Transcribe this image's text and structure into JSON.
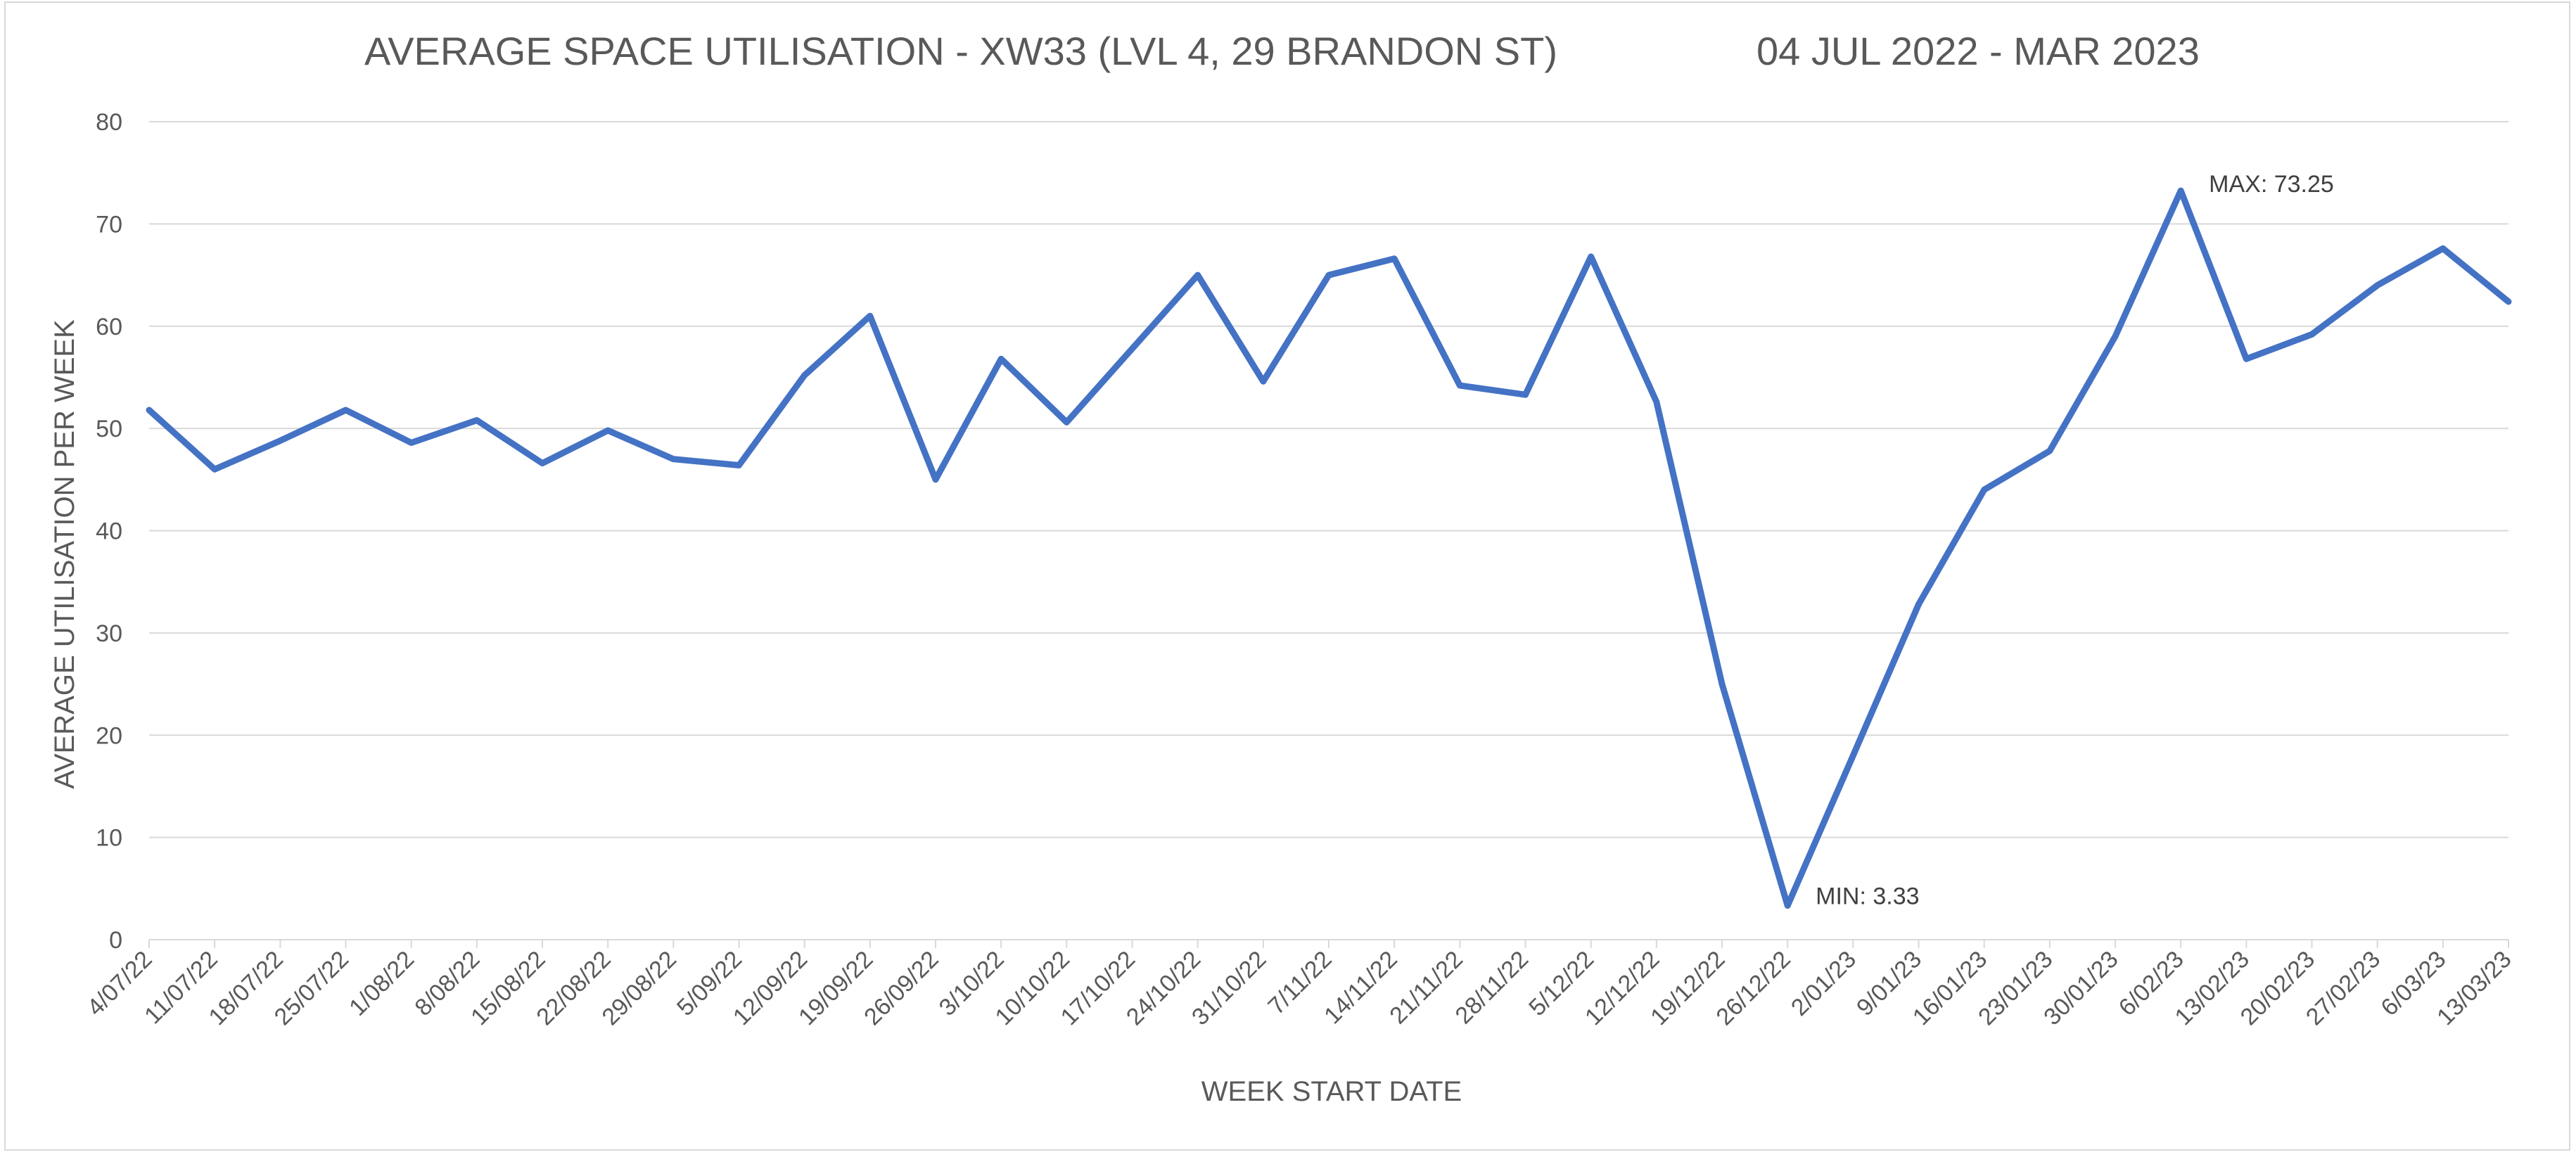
{
  "chart_data": {
    "type": "line",
    "title": "AVERAGE SPACE UTILISATION - XW33 (LVL 4, 29 BRANDON ST)",
    "subtitle": "04 JUL 2022 - MAR 2023",
    "xlabel": "WEEK START DATE",
    "ylabel": "AVERAGE UTILISATION PER WEEK",
    "ylim": [
      0,
      80
    ],
    "yticks": [
      0,
      10,
      20,
      30,
      40,
      50,
      60,
      70,
      80
    ],
    "grid": true,
    "legend": "none",
    "line_color": "#4472c4",
    "categories": [
      "4/07/22",
      "11/07/22",
      "18/07/22",
      "25/07/22",
      "1/08/22",
      "8/08/22",
      "15/08/22",
      "22/08/22",
      "29/08/22",
      "5/09/22",
      "12/09/22",
      "19/09/22",
      "26/09/22",
      "3/10/22",
      "10/10/22",
      "17/10/22",
      "24/10/22",
      "31/10/22",
      "7/11/22",
      "14/11/22",
      "21/11/22",
      "28/11/22",
      "5/12/22",
      "12/12/22",
      "19/12/22",
      "26/12/22",
      "2/01/23",
      "9/01/23",
      "16/01/23",
      "23/01/23",
      "30/01/23",
      "6/02/23",
      "13/02/23",
      "20/02/23",
      "27/02/23",
      "6/03/23",
      "13/03/23"
    ],
    "series": [
      {
        "values": [
          51.8,
          46.0,
          48.8,
          51.8,
          48.6,
          50.8,
          46.6,
          49.8,
          47.0,
          46.4,
          55.2,
          61.0,
          45.0,
          56.8,
          50.6,
          57.8,
          65.0,
          54.6,
          65.0,
          66.6,
          54.2,
          53.3,
          66.8,
          52.6,
          25.0,
          3.33,
          18.0,
          32.8,
          44.0,
          47.8,
          59.0,
          73.25,
          56.8,
          59.2,
          64.0,
          67.6,
          62.4
        ]
      }
    ],
    "annotations": [
      {
        "label": "MAX: 73.25",
        "category": "6/02/23",
        "value": 73.25
      },
      {
        "label": "MIN: 3.33",
        "category": "26/12/22",
        "value": 3.33
      }
    ]
  }
}
